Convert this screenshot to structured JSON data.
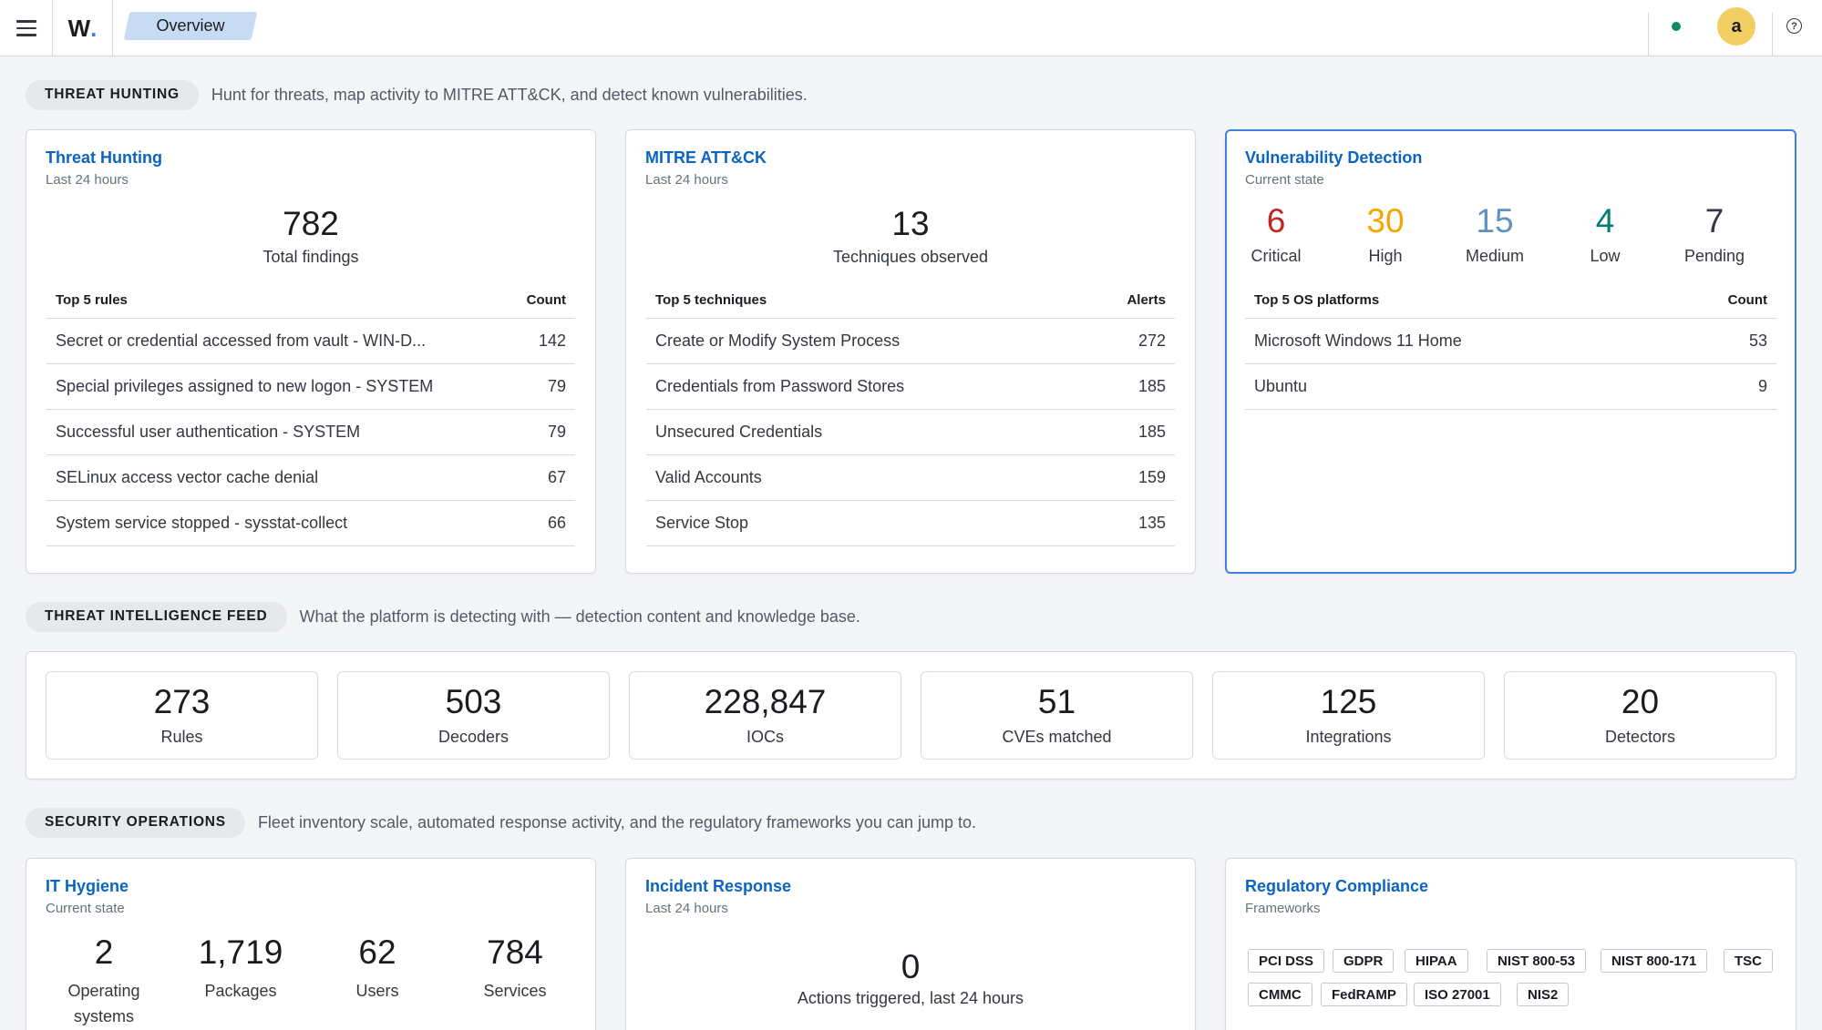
{
  "header": {
    "logo": "W",
    "logo_dot": ".",
    "breadcrumb": "Overview",
    "avatar_initial": "a",
    "help_glyph": "?",
    "status_color": "#0e8a66"
  },
  "sections": {
    "threat_hunting": {
      "label": "THREAT HUNTING",
      "description": "Hunt for threats, map activity to MITRE ATT&CK, and detect known vulnerabilities."
    },
    "threat_intel": {
      "label": "THREAT INTELLIGENCE FEED",
      "description": "What the platform is detecting with — detection content and knowledge base."
    },
    "security_ops": {
      "label": "SECURITY OPERATIONS",
      "description": "Fleet inventory scale, automated response activity, and the regulatory frameworks you can jump to."
    }
  },
  "threat_hunting_panel": {
    "title": "Threat Hunting",
    "subtitle": "Last 24 hours",
    "total": "782",
    "total_label": "Total findings",
    "col_name": "Top 5 rules",
    "col_value": "Count",
    "rows": [
      {
        "name": "Secret or credential accessed from vault - WIN-D...",
        "value": "142"
      },
      {
        "name": "Special privileges assigned to new logon - SYSTEM",
        "value": "79"
      },
      {
        "name": "Successful user authentication - SYSTEM",
        "value": "79"
      },
      {
        "name": "SELinux access vector cache denial",
        "value": "67"
      },
      {
        "name": "System service stopped - sysstat-collect",
        "value": "66"
      }
    ]
  },
  "mitre_panel": {
    "title": "MITRE ATT&CK",
    "subtitle": "Last 24 hours",
    "total": "13",
    "total_label": "Techniques observed",
    "col_name": "Top 5 techniques",
    "col_value": "Alerts",
    "rows": [
      {
        "name": "Create or Modify System Process",
        "value": "272"
      },
      {
        "name": "Credentials from Password Stores",
        "value": "185"
      },
      {
        "name": "Unsecured Credentials",
        "value": "185"
      },
      {
        "name": "Valid Accounts",
        "value": "159"
      },
      {
        "name": "Service Stop",
        "value": "135"
      }
    ]
  },
  "vuln_panel": {
    "title": "Vulnerability Detection",
    "subtitle": "Current state",
    "severities": [
      {
        "value": "6",
        "label": "Critical",
        "color": "#bd271e"
      },
      {
        "value": "30",
        "label": "High",
        "color": "#f5a700"
      },
      {
        "value": "15",
        "label": "Medium",
        "color": "#6092c0"
      },
      {
        "value": "4",
        "label": "Low",
        "color": "#017d73"
      },
      {
        "value": "7",
        "label": "Pending",
        "color": "#343741"
      }
    ],
    "col_name": "Top 5 OS platforms",
    "col_value": "Count",
    "rows": [
      {
        "name": "Microsoft Windows 11 Home",
        "value": "53"
      },
      {
        "name": "Ubuntu",
        "value": "9"
      }
    ]
  },
  "intel_stats": [
    {
      "value": "273",
      "label": "Rules"
    },
    {
      "value": "503",
      "label": "Decoders"
    },
    {
      "value": "228,847",
      "label": "IOCs"
    },
    {
      "value": "51",
      "label": "CVEs matched"
    },
    {
      "value": "125",
      "label": "Integrations"
    },
    {
      "value": "20",
      "label": "Detectors"
    }
  ],
  "it_hygiene": {
    "title": "IT Hygiene",
    "subtitle": "Current state",
    "stats": [
      {
        "value": "2",
        "label": "Operating systems"
      },
      {
        "value": "1,719",
        "label": "Packages"
      },
      {
        "value": "62",
        "label": "Users"
      },
      {
        "value": "784",
        "label": "Services"
      }
    ]
  },
  "incident_response": {
    "title": "Incident Response",
    "subtitle": "Last 24 hours",
    "total": "0",
    "total_label": "Actions triggered, last 24 hours"
  },
  "compliance": {
    "title": "Regulatory Compliance",
    "subtitle": "Frameworks",
    "frameworks_row1": [
      "PCI DSS",
      "GDPR",
      "HIPAA",
      "NIST 800-53",
      "NIST 800-171",
      "TSC"
    ],
    "frameworks_row2": [
      "CMMC",
      "FedRAMP",
      "ISO 27001",
      "NIS2"
    ]
  }
}
